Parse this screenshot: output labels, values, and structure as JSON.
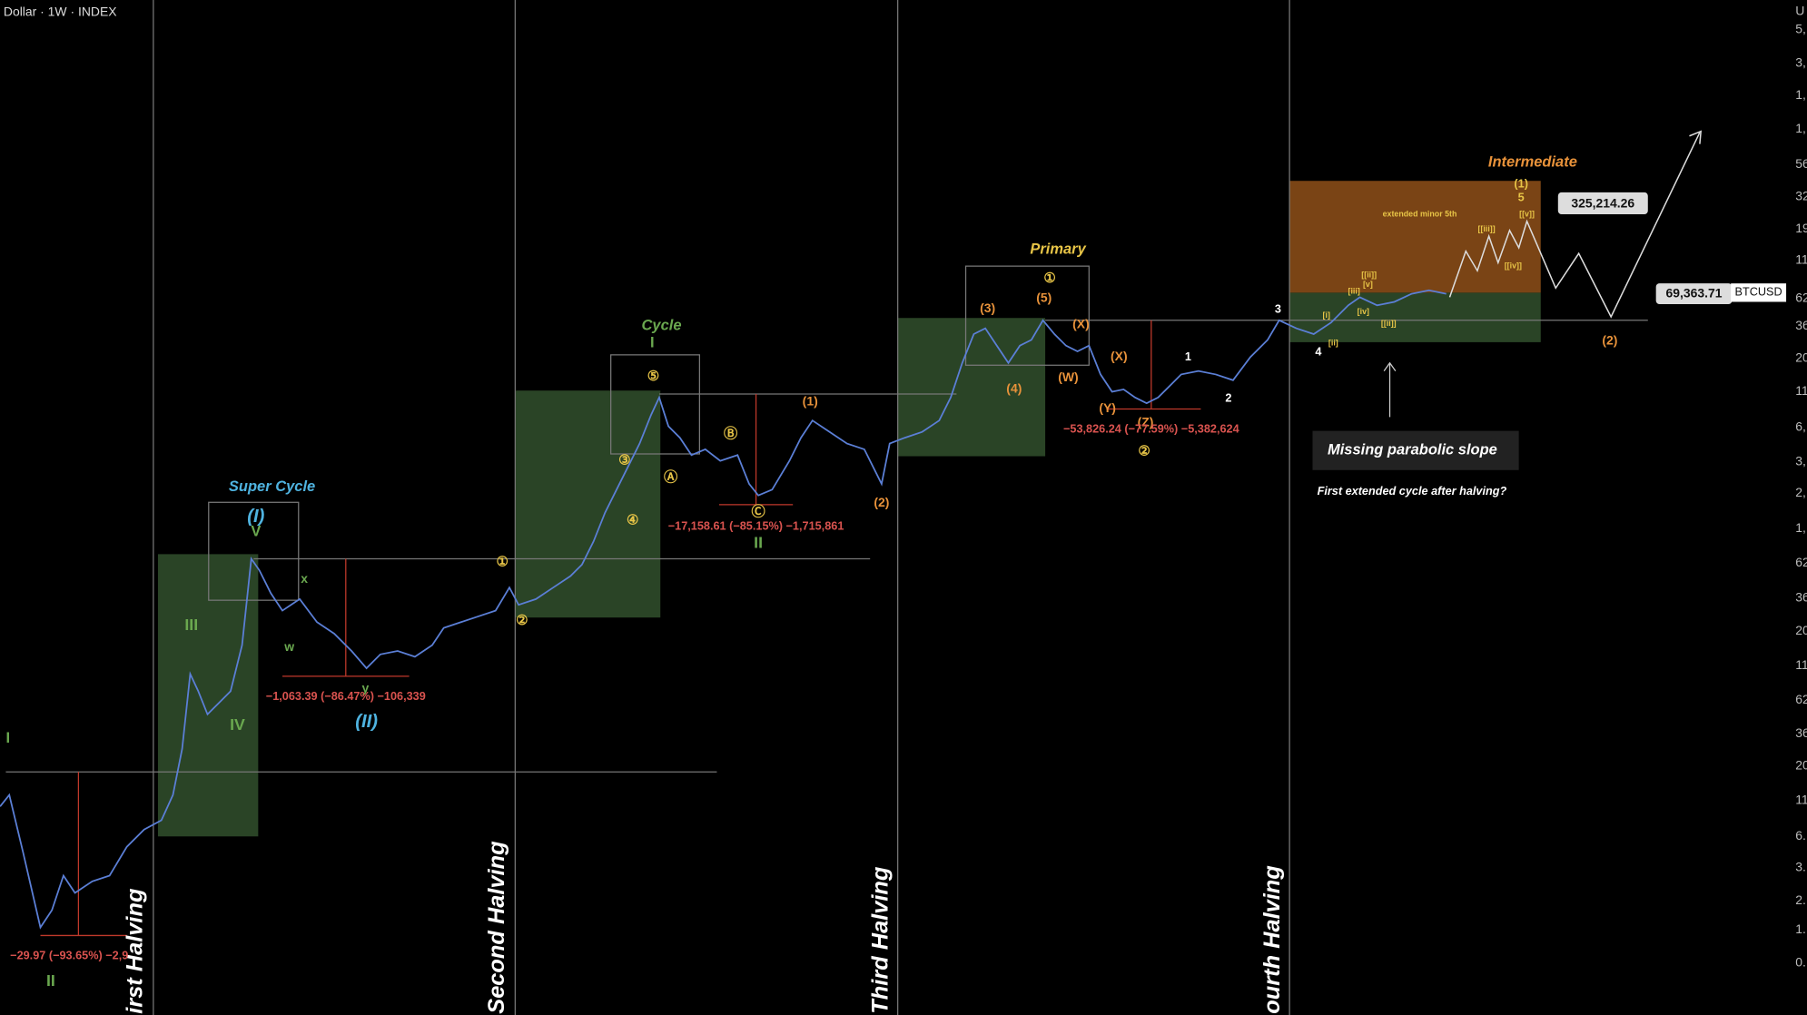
{
  "header": {
    "title": "Dollar · 1W · INDEX"
  },
  "halvings": [
    "irst Halving",
    "Second Halving",
    "Third Halving",
    "ourth Halving"
  ],
  "labels": [
    "Super Cycle",
    "(I)",
    "V",
    "III",
    "IV",
    "I",
    "II",
    "x",
    "w",
    "y",
    "(II)",
    "−1,063.39 (−86.47%) −106,339",
    "−29.97 (−93.65%) −2,9",
    "①",
    "②",
    "Cycle",
    "I",
    "⑤",
    "③",
    "④",
    "Ⓐ",
    "Ⓑ",
    "Ⓒ",
    "−17,158.61 (−85.15%) −1,715,861",
    "II",
    "(1)",
    "(2)",
    "Primary",
    "①",
    "(5)",
    "(3)",
    "(4)",
    "(X)",
    "(W)",
    "(X)",
    "(Y)",
    "(Z)",
    "②",
    "−53,826.24 (−77.59%) −5,382,624",
    "1",
    "2",
    "3",
    "4",
    "Intermediate",
    "(1)",
    "5",
    "extended minor 5th",
    "[[iii]]",
    "[[v]]",
    "[[iv]]",
    "[[ii]]",
    "[iii]",
    "[v]",
    "[iv]",
    "[[ii]]",
    "[i]",
    "[ii]",
    "(2)"
  ],
  "note": {
    "box": "Missing parabolic slope",
    "question": "First extended cycle after halving?"
  },
  "price_labels": {
    "target": "325,214.26",
    "last": "69,363.71",
    "symbol": "BTCUSD"
  },
  "axis_labels": [
    "U",
    "5,",
    "3,",
    "1,",
    "1,",
    "56",
    "32",
    "19",
    "11",
    "62",
    "36",
    "20",
    "11",
    "6,",
    "3,",
    "2,",
    "1,",
    "62",
    "36",
    "20",
    "11",
    "62",
    "36",
    "20",
    "11",
    "6.",
    "3.",
    "2.",
    "1.",
    "0."
  ]
}
